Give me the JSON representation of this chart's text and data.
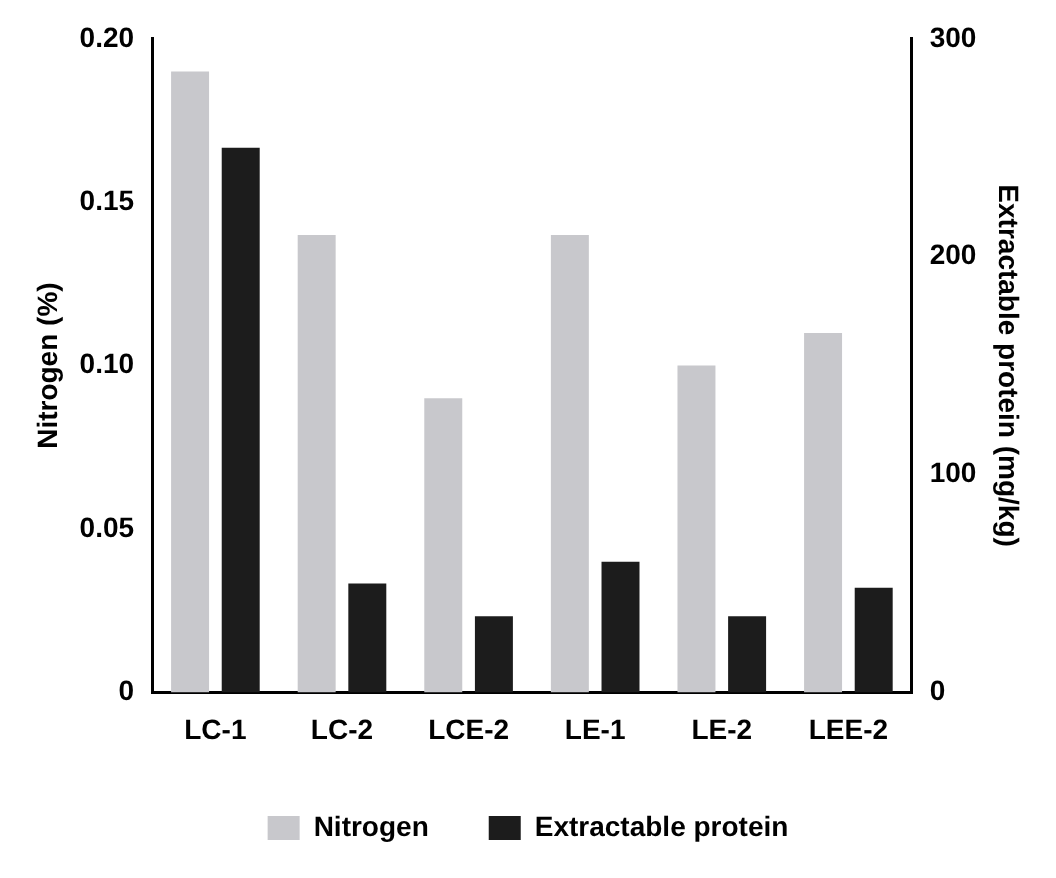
{
  "chart_data": {
    "type": "bar",
    "ylabel": "Nitrogen (%)",
    "y2label": "Extractable protein (mg/kg)",
    "categories": [
      "LC-1",
      "LC-2",
      "LCE-2",
      "LE-1",
      "LE-2",
      "LEE-2"
    ],
    "series": [
      {
        "name": "Nitrogen",
        "color": "#c8c8cc",
        "values": [
          0.19,
          0.14,
          0.09,
          0.14,
          0.1,
          0.11
        ]
      },
      {
        "name": "Extractable protein",
        "color": "#1c1c1c",
        "axis": "y2",
        "values": [
          250,
          50,
          35,
          60,
          35,
          48
        ]
      }
    ],
    "ylim": [
      0,
      0.2
    ],
    "yticks": [
      0,
      0.05,
      {
        "value": 0.1,
        "label": "0.10"
      },
      0.15,
      {
        "value": 0.2,
        "label": "0.20"
      }
    ],
    "y2lim": [
      0,
      300
    ],
    "y2ticks": [
      0,
      100,
      200,
      300
    ],
    "grid": false,
    "legend": "bottom"
  }
}
